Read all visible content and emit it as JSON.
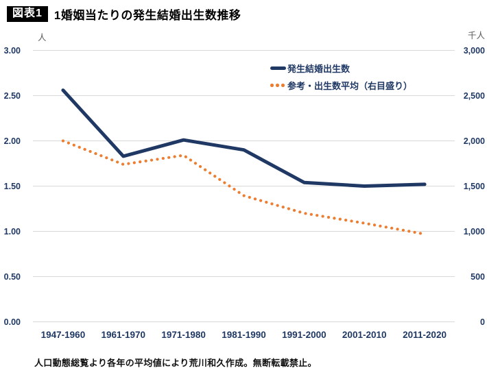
{
  "header": {
    "badge": "図表1",
    "title": "1婚姻当たりの発生結婚出生数推移"
  },
  "footer": {
    "note": "人口動態総覧より各年の平均値により荒川和久作成。無断転載禁止。"
  },
  "colors": {
    "series_navy": "#1f3864",
    "series_orange": "#ed7d31",
    "gridline": "#d9d9d9",
    "axis_text": "#1f3864",
    "unit_text": "#595959"
  },
  "chart_data": {
    "type": "line",
    "title": "1婚姻当たりの発生結婚出生数推移",
    "categories": [
      "1947-1960",
      "1961-1970",
      "1971-1980",
      "1981-1990",
      "1991-2000",
      "2001-2010",
      "2011-2020"
    ],
    "series": [
      {
        "name": "発生結婚出生数",
        "axis": "left",
        "style": "solid",
        "color": "#1f3864",
        "values": [
          2.56,
          1.83,
          2.01,
          1.9,
          1.54,
          1.5,
          1.52
        ]
      },
      {
        "name": "参考・出生数平均（右目盛り）",
        "axis": "right",
        "style": "dotted",
        "color": "#ed7d31",
        "values": [
          2000,
          1740,
          1840,
          1395,
          1200,
          1090,
          970
        ]
      }
    ],
    "left_axis": {
      "unit": "人",
      "min": 0,
      "max": 3,
      "ticks": [
        "3.00",
        "2.50",
        "2.00",
        "1.50",
        "1.00",
        "0.50",
        "0.00"
      ]
    },
    "right_axis": {
      "unit": "千人",
      "min": 0,
      "max": 3000,
      "ticks": [
        "3,000",
        "2,500",
        "2,000",
        "1,500",
        "1,000",
        "500",
        "0"
      ]
    },
    "grid": true,
    "legend_position": "top-right"
  }
}
